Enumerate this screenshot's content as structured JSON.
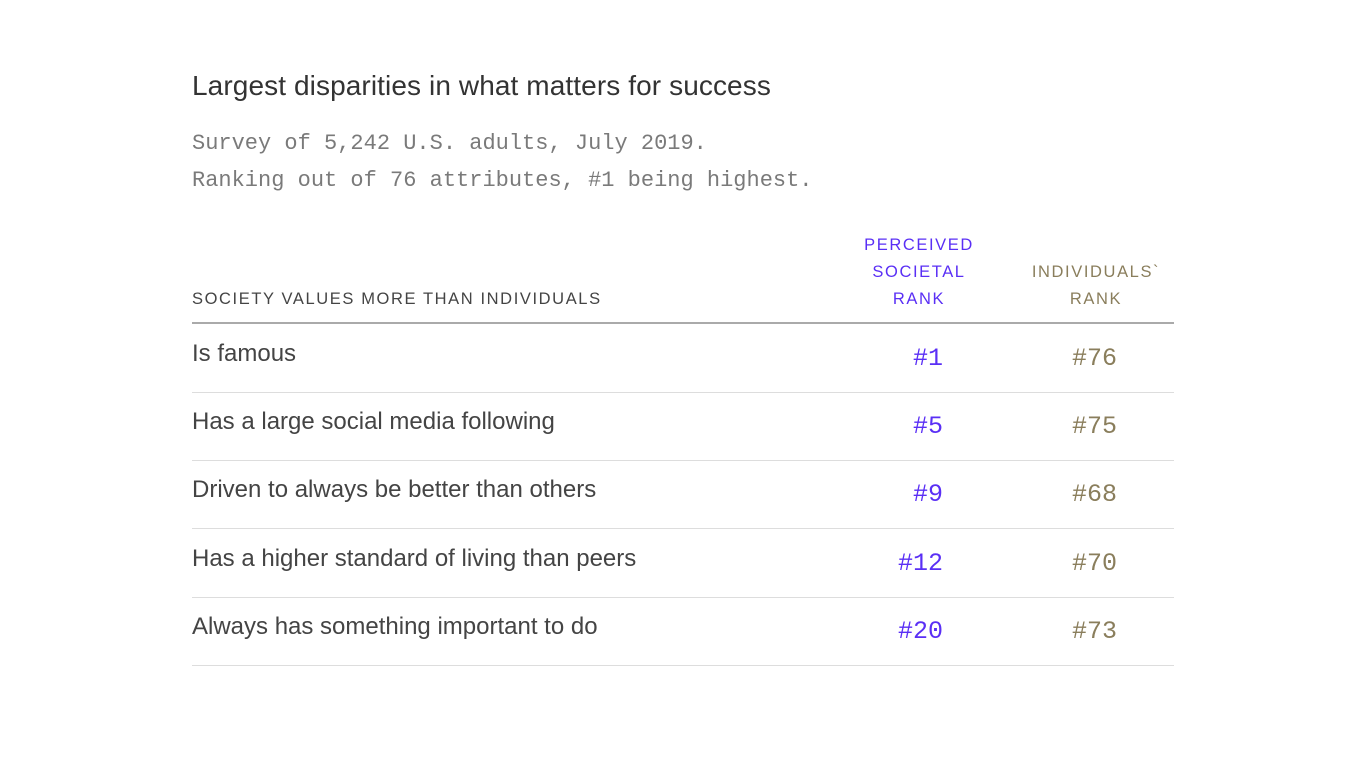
{
  "chart_data": {
    "type": "table",
    "title": "Largest disparities in what matters for success",
    "subtitle": [
      "Survey of 5,242 U.S. adults, July 2019.",
      "Ranking out of 76 attributes, #1 being highest."
    ],
    "columns": [
      "SOCIETY VALUES MORE THAN INDIVIDUALS",
      "PERCEIVED SOCIETAL RANK",
      "INDIVIDUALS` RANK"
    ],
    "column_header_lines": {
      "societal": [
        "PERCEIVED",
        "SOCIETAL",
        "RANK"
      ],
      "individual": [
        "INDIVIDUALS`",
        "RANK"
      ]
    },
    "rows": [
      {
        "label": "Is famous",
        "societal": "#1",
        "individual": "#76"
      },
      {
        "label": "Has a large social media following",
        "societal": "#5",
        "individual": "#75"
      },
      {
        "label": "Driven to always be better than others",
        "societal": "#9",
        "individual": "#68"
      },
      {
        "label": "Has a higher standard of living than peers",
        "societal": "#12",
        "individual": "#70"
      },
      {
        "label": "Always has something important to do",
        "societal": "#20",
        "individual": "#73"
      }
    ],
    "colors": {
      "societal": "#5a2ff5",
      "individual": "#8a7e5c",
      "text": "#444444"
    }
  }
}
